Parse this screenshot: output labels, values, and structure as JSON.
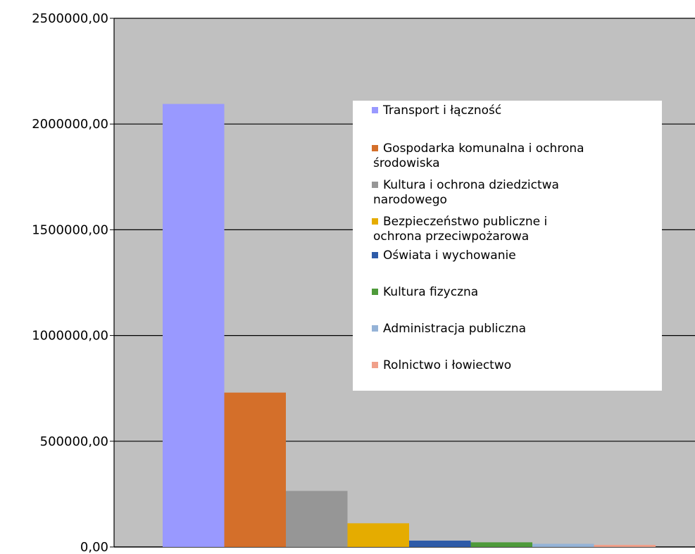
{
  "chart_data": {
    "type": "bar",
    "title": "",
    "xlabel": "",
    "ylabel": "",
    "ylim": [
      0,
      2500000
    ],
    "y_ticks": [
      "0,00",
      "500000,00",
      "1000000,00",
      "1500000,00",
      "2000000,00",
      "2500000,00"
    ],
    "y_tick_values": [
      0,
      500000,
      1000000,
      1500000,
      2000000,
      2500000
    ],
    "grid": true,
    "legend_position": "right",
    "plot_background": "#c0c0c0",
    "series": [
      {
        "name": "Transport i łączność",
        "value": 2095000,
        "color": "#9999ff"
      },
      {
        "name": "Gospodarka komunalna i ochrona środowiska",
        "value": 730000,
        "color": "#d46f2a"
      },
      {
        "name": "Kultura i ochrona dziedzictwa narodowego",
        "value": 265000,
        "color": "#969696"
      },
      {
        "name": "Bezpieczeństwo publiczne i ochrona przeciwpożarowa",
        "value": 112000,
        "color": "#e5ac00"
      },
      {
        "name": "Oświata i wychowanie",
        "value": 30000,
        "color": "#2e5ba8"
      },
      {
        "name": "Kultura fizyczna",
        "value": 22000,
        "color": "#4e9a3a"
      },
      {
        "name": "Administracja publiczna",
        "value": 15000,
        "color": "#95b3d7"
      },
      {
        "name": "Rolnictwo i łowiectwo",
        "value": 10000,
        "color": "#f0a08a"
      }
    ]
  }
}
